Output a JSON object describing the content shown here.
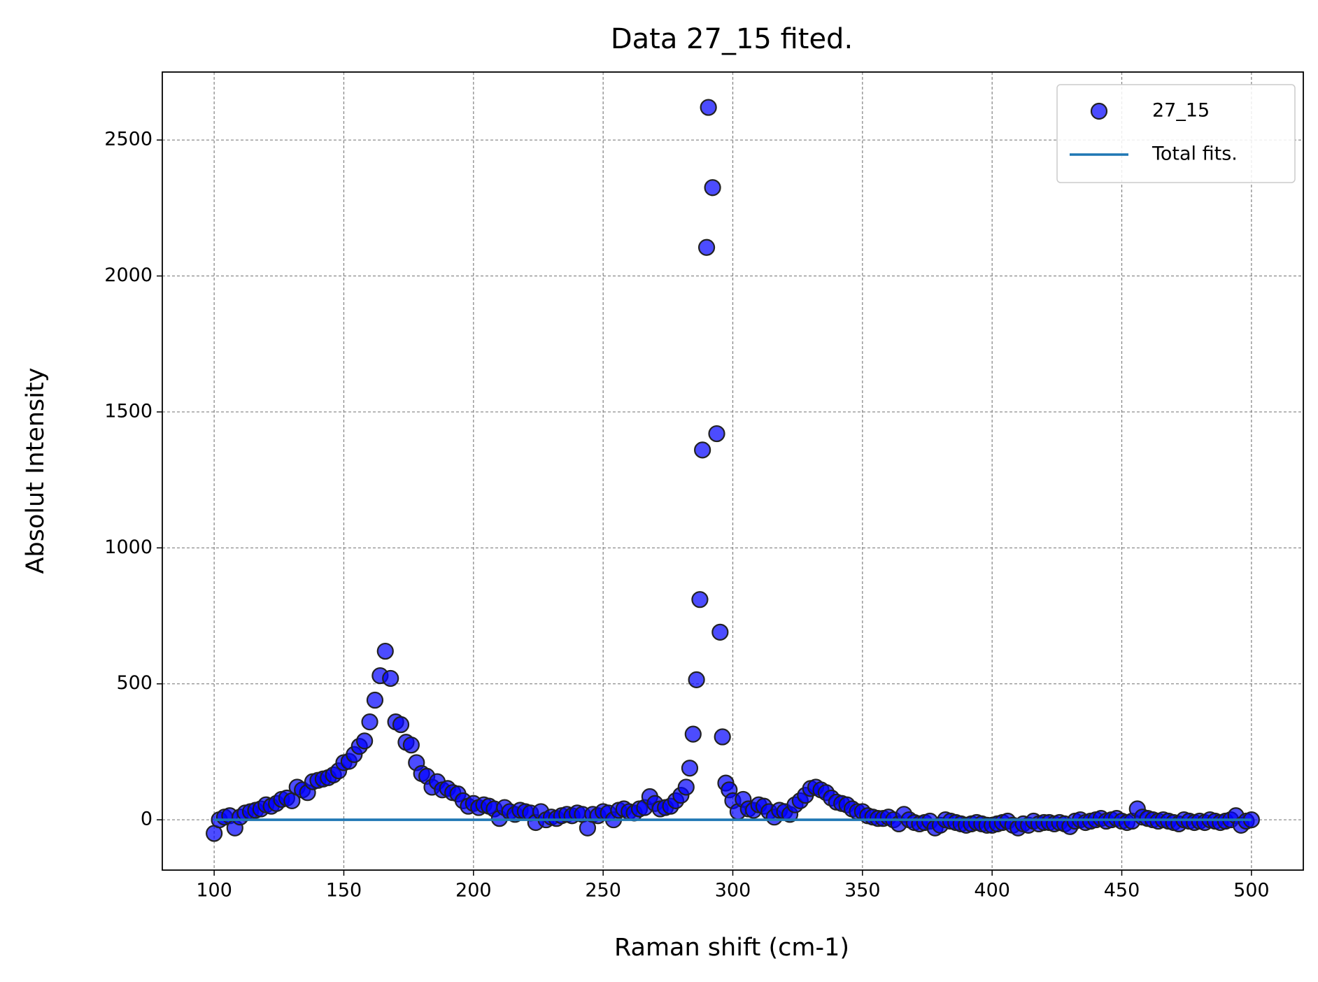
{
  "chart_data": {
    "type": "scatter",
    "title": "Data 27_15 fited.",
    "xlabel": "Raman shift (cm-1)",
    "ylabel": "Absolut Intensity",
    "xlim": [
      80,
      520
    ],
    "ylim": [
      -185,
      2750
    ],
    "xticks": [
      100,
      150,
      200,
      250,
      300,
      350,
      400,
      450,
      500
    ],
    "yticks": [
      0,
      500,
      1000,
      1500,
      2000,
      2500
    ],
    "grid": true,
    "legend": "upper right",
    "series": [
      {
        "name": "27_15",
        "type": "scatter",
        "color": "#0000ff",
        "edgecolor": "#222222",
        "x": [
          100,
          102,
          104,
          106,
          108,
          110,
          112,
          114,
          116,
          118,
          120,
          122,
          124,
          126,
          128,
          130,
          132,
          134,
          136,
          138,
          140,
          142,
          144,
          146,
          148,
          150,
          152,
          154,
          156,
          158,
          160,
          162,
          164,
          166,
          168,
          170,
          172,
          174,
          176,
          178,
          180,
          182,
          184,
          186,
          188,
          190,
          192,
          194,
          196,
          198,
          200,
          202,
          204,
          206,
          208,
          210,
          212,
          214,
          216,
          218,
          220,
          222,
          224,
          226,
          228,
          230,
          232,
          234,
          236,
          238,
          240,
          242,
          244,
          246,
          248,
          250,
          252,
          254,
          256,
          258,
          260,
          262,
          264,
          266,
          268,
          270,
          272,
          274,
          276,
          278,
          280,
          282,
          283.4,
          284.7,
          286,
          287.3,
          288.3,
          289.9,
          290.6,
          292.2,
          293.8,
          295.1,
          296,
          297.3,
          298.6,
          300,
          302,
          304,
          306,
          308,
          310,
          312,
          314,
          316,
          318,
          320,
          322,
          324,
          326,
          328,
          330,
          332,
          334,
          336,
          338,
          340,
          342,
          344,
          346,
          348,
          350,
          352,
          354,
          356,
          358,
          360,
          362,
          364,
          366,
          368,
          370,
          372,
          374,
          376,
          378,
          380,
          382,
          384,
          386,
          388,
          390,
          392,
          394,
          396,
          398,
          400,
          402,
          404,
          406,
          408,
          410,
          412,
          414,
          416,
          418,
          420,
          422,
          424,
          426,
          428,
          430,
          432,
          434,
          436,
          438,
          440,
          442,
          444,
          446,
          448,
          450,
          452,
          454,
          456,
          458,
          460,
          462,
          464,
          466,
          468,
          470,
          472,
          474,
          476,
          478,
          480,
          482,
          484,
          486,
          488,
          490,
          492,
          494,
          496,
          498,
          500
        ],
        "values": [
          -50,
          0,
          10,
          15,
          -30,
          10,
          25,
          30,
          35,
          40,
          55,
          50,
          60,
          75,
          80,
          70,
          120,
          110,
          100,
          140,
          145,
          150,
          155,
          165,
          180,
          210,
          215,
          240,
          270,
          290,
          360,
          440,
          530,
          620,
          520,
          360,
          350,
          285,
          275,
          210,
          170,
          160,
          120,
          140,
          110,
          115,
          100,
          95,
          70,
          50,
          60,
          45,
          55,
          50,
          40,
          5,
          45,
          30,
          20,
          35,
          30,
          25,
          -10,
          30,
          0,
          10,
          5,
          15,
          20,
          15,
          25,
          20,
          -30,
          20,
          15,
          30,
          25,
          0,
          35,
          40,
          30,
          25,
          40,
          45,
          85,
          60,
          40,
          45,
          50,
          70,
          90,
          120,
          190,
          315,
          515,
          810,
          1360,
          2105,
          2620,
          2325,
          1420,
          690,
          305,
          135,
          110,
          70,
          30,
          75,
          40,
          35,
          55,
          50,
          30,
          10,
          35,
          30,
          20,
          55,
          70,
          90,
          115,
          120,
          110,
          100,
          80,
          65,
          60,
          55,
          40,
          30,
          30,
          15,
          10,
          5,
          5,
          10,
          0,
          -15,
          20,
          0,
          -10,
          -15,
          -10,
          -5,
          -30,
          -20,
          0,
          -5,
          -10,
          -15,
          -20,
          -15,
          -10,
          -15,
          -20,
          -20,
          -15,
          -10,
          -5,
          -20,
          -30,
          -15,
          -20,
          -5,
          -15,
          -10,
          -10,
          -15,
          -10,
          -15,
          -25,
          -5,
          0,
          -10,
          -5,
          0,
          5,
          -5,
          0,
          5,
          -5,
          -10,
          -5,
          40,
          10,
          5,
          0,
          -5,
          0,
          -5,
          -10,
          -15,
          0,
          -5,
          -10,
          -5,
          -10,
          0,
          -5,
          -10,
          -5,
          0,
          15,
          -20,
          -5,
          0
        ]
      },
      {
        "name": "Total fits.",
        "type": "line",
        "color": "#1f77b4",
        "x": [
          100,
          500
        ],
        "values": [
          0,
          0
        ]
      }
    ]
  }
}
